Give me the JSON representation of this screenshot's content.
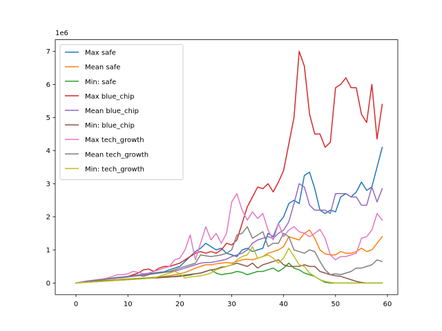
{
  "chart_data": {
    "type": "line",
    "title": "",
    "xlabel": "",
    "ylabel": "",
    "y_offset_label": "1e6",
    "y_scale": 1000000,
    "xlim": [
      -4,
      62
    ],
    "ylim": [
      -0.35,
      7.35
    ],
    "x_ticks": [
      0,
      10,
      20,
      30,
      40,
      50,
      60
    ],
    "y_ticks": [
      0,
      1,
      2,
      3,
      4,
      5,
      6,
      7
    ],
    "grid": false,
    "legend_position": "upper left",
    "series": [
      {
        "name": "Max safe",
        "color": "#1f77b4",
        "x_range": [
          0,
          59
        ],
        "values": [
          0.0,
          0.02,
          0.04,
          0.06,
          0.09,
          0.11,
          0.13,
          0.15,
          0.17,
          0.18,
          0.2,
          0.22,
          0.24,
          0.26,
          0.28,
          0.3,
          0.32,
          0.34,
          0.4,
          0.45,
          0.5,
          0.65,
          0.8,
          0.95,
          1.05,
          1.2,
          1.1,
          1.0,
          1.05,
          0.9,
          0.85,
          0.8,
          1.0,
          1.05,
          0.95,
          1.0,
          1.05,
          1.5,
          1.4,
          1.8,
          2.0,
          2.4,
          2.5,
          2.4,
          3.25,
          3.35,
          2.85,
          2.2,
          2.1,
          2.2,
          2.15,
          2.6,
          2.7,
          2.6,
          2.75,
          3.05,
          2.8,
          2.9,
          3.5,
          4.1
        ]
      },
      {
        "name": "Mean safe",
        "color": "#ff7f0e",
        "x_range": [
          0,
          59
        ],
        "values": [
          0.0,
          0.02,
          0.04,
          0.05,
          0.06,
          0.07,
          0.08,
          0.09,
          0.1,
          0.11,
          0.12,
          0.13,
          0.14,
          0.15,
          0.16,
          0.17,
          0.18,
          0.2,
          0.22,
          0.25,
          0.28,
          0.32,
          0.38,
          0.45,
          0.5,
          0.55,
          0.55,
          0.58,
          0.6,
          0.62,
          0.6,
          0.65,
          0.7,
          0.72,
          0.7,
          0.75,
          0.8,
          0.9,
          0.95,
          1.0,
          1.1,
          1.4,
          1.35,
          1.3,
          1.5,
          1.6,
          1.35,
          1.0,
          0.88,
          0.85,
          0.85,
          0.95,
          0.9,
          0.9,
          0.95,
          1.05,
          0.95,
          1.0,
          1.2,
          1.4
        ]
      },
      {
        "name": "Min: safe",
        "color": "#2ca02c",
        "x_range": [
          0,
          59
        ],
        "values": [
          0.0,
          0.02,
          0.03,
          0.04,
          0.05,
          0.06,
          0.07,
          0.08,
          0.09,
          0.1,
          0.11,
          0.12,
          0.13,
          0.14,
          0.15,
          0.16,
          0.17,
          0.18,
          0.19,
          0.2,
          0.22,
          0.24,
          0.26,
          0.28,
          0.3,
          0.35,
          0.4,
          0.3,
          0.25,
          0.28,
          0.3,
          0.35,
          0.32,
          0.25,
          0.3,
          0.35,
          0.35,
          0.4,
          0.45,
          0.35,
          0.45,
          0.6,
          0.45,
          0.4,
          0.3,
          0.25,
          0.2,
          0.1,
          0.02,
          0.0,
          0.0,
          0.0,
          0.0,
          0.0,
          0.0,
          0.0,
          0.0,
          0.0,
          0.0,
          0.0
        ]
      },
      {
        "name": "Max blue_chip",
        "color": "#d62728",
        "x_range": [
          0,
          59
        ],
        "values": [
          0.0,
          0.03,
          0.05,
          0.07,
          0.09,
          0.1,
          0.12,
          0.14,
          0.16,
          0.18,
          0.2,
          0.25,
          0.3,
          0.4,
          0.42,
          0.35,
          0.45,
          0.5,
          0.5,
          0.55,
          0.6,
          0.7,
          0.8,
          0.9,
          0.95,
          0.9,
          0.95,
          0.9,
          1.0,
          1.2,
          1.15,
          1.3,
          1.8,
          2.3,
          2.6,
          2.9,
          2.85,
          3.0,
          2.75,
          3.05,
          3.4,
          4.2,
          5.0,
          7.0,
          6.55,
          5.1,
          4.5,
          4.5,
          4.1,
          4.25,
          5.9,
          6.0,
          6.2,
          5.9,
          5.9,
          5.1,
          4.85,
          6.0,
          4.35,
          5.4
        ]
      },
      {
        "name": "Mean blue_chip",
        "color": "#9467bd",
        "x_range": [
          0,
          59
        ],
        "values": [
          0.0,
          0.02,
          0.04,
          0.06,
          0.08,
          0.1,
          0.12,
          0.13,
          0.15,
          0.16,
          0.18,
          0.2,
          0.22,
          0.24,
          0.26,
          0.28,
          0.3,
          0.32,
          0.34,
          0.36,
          0.4,
          0.45,
          0.5,
          0.55,
          0.6,
          0.62,
          0.62,
          0.65,
          0.68,
          0.72,
          0.8,
          0.85,
          0.9,
          1.0,
          1.2,
          1.3,
          1.35,
          1.4,
          1.35,
          1.5,
          1.6,
          1.85,
          2.4,
          3.0,
          2.9,
          2.35,
          2.2,
          2.2,
          2.2,
          2.1,
          2.7,
          2.7,
          2.7,
          2.6,
          2.6,
          2.35,
          2.35,
          2.9,
          2.45,
          2.85
        ]
      },
      {
        "name": "Min: blue_chip",
        "color": "#8c564b",
        "x_range": [
          0,
          59
        ],
        "values": [
          0.0,
          0.01,
          0.02,
          0.03,
          0.04,
          0.05,
          0.06,
          0.07,
          0.08,
          0.09,
          0.1,
          0.11,
          0.12,
          0.13,
          0.14,
          0.15,
          0.16,
          0.17,
          0.18,
          0.19,
          0.2,
          0.22,
          0.24,
          0.28,
          0.3,
          0.35,
          0.4,
          0.42,
          0.48,
          0.5,
          0.55,
          0.6,
          0.55,
          0.5,
          0.6,
          0.45,
          0.55,
          0.6,
          0.65,
          0.7,
          0.55,
          0.5,
          0.5,
          0.5,
          0.55,
          0.5,
          0.5,
          0.35,
          0.3,
          0.25,
          0.22,
          0.2,
          0.15,
          0.1,
          0.05,
          0.02,
          0.0,
          0.0,
          0.0,
          0.0
        ]
      },
      {
        "name": "Max tech_growth",
        "color": "#e377c2",
        "x_range": [
          0,
          59
        ],
        "values": [
          0.0,
          0.03,
          0.06,
          0.08,
          0.1,
          0.12,
          0.15,
          0.2,
          0.25,
          0.25,
          0.28,
          0.35,
          0.32,
          0.28,
          0.3,
          0.35,
          0.4,
          0.45,
          0.5,
          0.7,
          0.75,
          1.0,
          1.45,
          0.7,
          1.2,
          1.7,
          1.3,
          1.5,
          1.2,
          1.5,
          2.45,
          2.7,
          2.2,
          1.9,
          2.15,
          1.95,
          2.1,
          1.6,
          1.3,
          1.8,
          1.4,
          1.6,
          1.7,
          1.55,
          1.5,
          1.4,
          1.5,
          1.62,
          1.35,
          0.85,
          0.7,
          0.8,
          0.8,
          0.85,
          0.9,
          1.35,
          1.4,
          1.6,
          2.1,
          1.9
        ]
      },
      {
        "name": "Mean tech_growth",
        "color": "#7f7f7f",
        "x_range": [
          0,
          59
        ],
        "values": [
          0.0,
          0.02,
          0.05,
          0.07,
          0.09,
          0.1,
          0.12,
          0.14,
          0.16,
          0.18,
          0.2,
          0.22,
          0.24,
          0.2,
          0.25,
          0.28,
          0.3,
          0.32,
          0.35,
          0.4,
          0.45,
          0.5,
          0.55,
          0.6,
          0.85,
          0.82,
          0.8,
          0.82,
          0.85,
          0.9,
          1.0,
          1.45,
          1.5,
          1.7,
          1.35,
          1.45,
          1.55,
          1.1,
          1.2,
          1.2,
          1.5,
          1.4,
          1.0,
          0.95,
          0.9,
          1.0,
          0.95,
          0.65,
          0.4,
          0.25,
          0.28,
          0.25,
          0.3,
          0.35,
          0.45,
          0.45,
          0.5,
          0.55,
          0.7,
          0.65
        ]
      },
      {
        "name": "Min: tech_growth",
        "color": "#bcbd22",
        "x_range": [
          0,
          59
        ],
        "values": [
          0.0,
          0.01,
          0.02,
          0.03,
          0.04,
          0.05,
          0.06,
          0.07,
          0.08,
          0.09,
          0.1,
          0.11,
          0.12,
          0.13,
          0.14,
          0.15,
          0.2,
          0.25,
          0.3,
          0.35,
          0.28,
          0.15,
          0.18,
          0.2,
          0.22,
          0.25,
          0.3,
          0.4,
          0.45,
          0.5,
          0.55,
          0.7,
          0.8,
          0.85,
          1.1,
          0.75,
          0.8,
          0.85,
          0.75,
          0.6,
          0.75,
          1.05,
          0.8,
          0.55,
          0.5,
          0.3,
          0.2,
          0.1,
          0.05,
          0.02,
          0.0,
          0.0,
          0.0,
          0.0,
          0.0,
          0.0,
          0.0,
          0.0,
          0.0,
          0.0
        ]
      }
    ]
  }
}
